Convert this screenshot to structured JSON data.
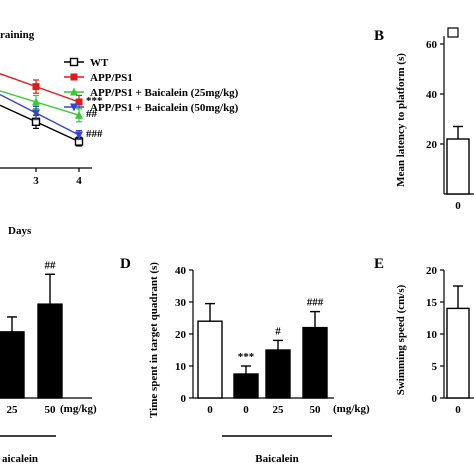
{
  "figure": {
    "panel_labels": {
      "b": "B",
      "d": "D",
      "e": "E"
    }
  },
  "chart_data": [
    {
      "id": "A",
      "type": "line",
      "title": "raining",
      "xlabel": "Days",
      "categories": [
        3,
        4
      ],
      "series": [
        {
          "name": "WT",
          "color": "#000000",
          "marker": "open-square",
          "values": [
            21,
            12
          ],
          "errors": [
            3,
            2
          ],
          "sig": ""
        },
        {
          "name": "APP/PS1",
          "color": "#e31a1c",
          "marker": "square",
          "values": [
            37,
            30
          ],
          "errors": [
            3,
            3
          ],
          "sig": "***"
        },
        {
          "name": "APP/PS1 + Baicalein (25mg/kg)",
          "color": "#33cc33",
          "marker": "triangle-up",
          "values": [
            30,
            24
          ],
          "errors": [
            3,
            3
          ],
          "sig": "##"
        },
        {
          "name": "APP/PS1 + Baicalein (50mg/kg)",
          "color": "#3344dd",
          "marker": "triangle-down",
          "values": [
            25,
            15
          ],
          "errors": [
            3,
            2
          ],
          "sig": "###"
        }
      ]
    },
    {
      "id": "B",
      "type": "bar",
      "ylabel": "Mean latency to platform (s)",
      "ylim": [
        0,
        60
      ],
      "yticks": [
        20,
        40,
        60
      ],
      "categories": [
        "0"
      ],
      "values": [
        22
      ],
      "errors": [
        5
      ],
      "fills": [
        "open"
      ]
    },
    {
      "id": "C",
      "type": "bar",
      "categories": [
        "25",
        "50"
      ],
      "values": [
        15.5,
        22
      ],
      "errors": [
        3.5,
        7
      ],
      "sig": [
        "",
        "##"
      ],
      "unit": "(mg/kg)",
      "group_label": "aicalein",
      "ylim": [
        0,
        30
      ]
    },
    {
      "id": "D",
      "type": "bar",
      "ylabel": "Time spent in target quadrant (s)",
      "ylim": [
        0,
        40
      ],
      "yticks": [
        0,
        10,
        20,
        30,
        40
      ],
      "categories": [
        "0",
        "0",
        "25",
        "50"
      ],
      "unit": "(mg/kg)",
      "group_label": "Baicalein",
      "values": [
        24,
        7.5,
        15,
        22
      ],
      "errors": [
        5.5,
        2.5,
        3,
        5
      ],
      "sig": [
        "",
        "***",
        "#",
        "###"
      ],
      "fills": [
        "open",
        "solid",
        "solid",
        "solid"
      ]
    },
    {
      "id": "E",
      "type": "bar",
      "ylabel": "Swimming speed (cm/s)",
      "ylim": [
        0,
        20
      ],
      "yticks": [
        0,
        5,
        10,
        15,
        20
      ],
      "categories": [
        "0"
      ],
      "values": [
        14
      ],
      "errors": [
        3.5
      ],
      "fills": [
        "open"
      ]
    }
  ]
}
